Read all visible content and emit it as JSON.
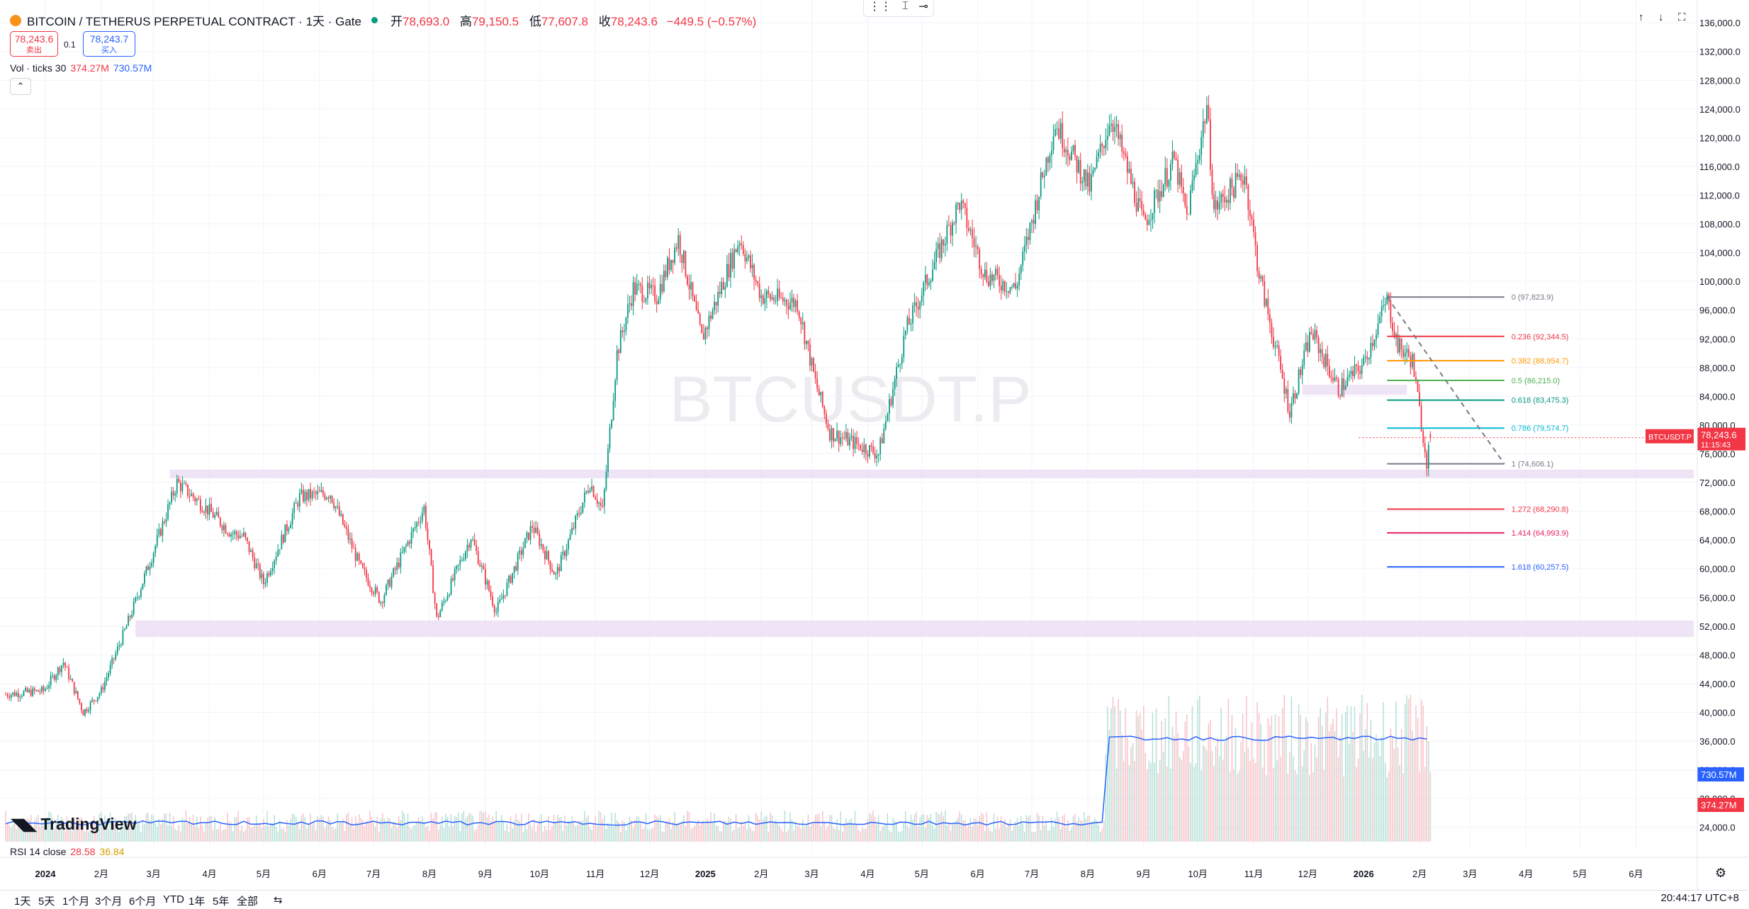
{
  "header": {
    "title": "BITCOIN / TETHERUS PERPETUAL CONTRACT · 1天 · Gate",
    "ohlc": [
      {
        "label": "开",
        "value": "78,693.0"
      },
      {
        "label": "高",
        "value": "79,150.5"
      },
      {
        "label": "低",
        "value": "77,607.8"
      },
      {
        "label": "收",
        "value": "78,243.6"
      }
    ],
    "change": "−449.5 (−0.57%)",
    "sell": {
      "price": "78,243.6",
      "label": "卖出"
    },
    "buy": {
      "price": "78,243.7",
      "label": "买入"
    },
    "spread": "0.1"
  },
  "volume_legend": {
    "label": "Vol · ticks 30",
    "v1": "374.27M",
    "v2": "730.57M"
  },
  "watermark": "BTCUSDT.P",
  "brand": "TradingView",
  "rsi_legend": {
    "label": "RSI 14 close",
    "v1": "28.58",
    "v2": "36.84"
  },
  "price_tag": {
    "symbol": "BTCUSDT.P",
    "price": "78,243.6",
    "countdown": "11:15:43"
  },
  "volume_tags": [
    "730.57M",
    "374.27M"
  ],
  "timeframes": [
    "1天",
    "5天",
    "1个月",
    "3个月",
    "6个月",
    "YTD",
    "1年",
    "5年",
    "全部"
  ],
  "clock": "20:44:17 UTC+8",
  "colors": {
    "up": "#089981",
    "down": "#f23645",
    "zone": "#e8d8f2",
    "blue": "#2962ff"
  },
  "chart_data": {
    "type": "candlestick",
    "yaxis": {
      "min": 22000,
      "max": 137000,
      "ticks": [
        24000,
        28000,
        32000,
        36000,
        40000,
        44000,
        48000,
        52000,
        56000,
        60000,
        64000,
        68000,
        72000,
        76000,
        80000,
        84000,
        88000,
        92000,
        96000,
        100000,
        104000,
        108000,
        112000,
        116000,
        120000,
        124000,
        128000,
        132000,
        136000
      ],
      "tick_labels": [
        "24,000.0",
        "28,000.0",
        "32,000.0",
        "36,000.0",
        "40,000.0",
        "44,000.0",
        "48,000.0",
        "52,000.0",
        "56,000.0",
        "60,000.0",
        "64,000.0",
        "68,000.0",
        "72,000.0",
        "76,000.0",
        "80,000.0",
        "84,000.0",
        "88,000.0",
        "92,000.0",
        "96,000.0",
        "100,000.0",
        "104,000.0",
        "108,000.0",
        "112,000.0",
        "116,000.0",
        "120,000.0",
        "124,000.0",
        "128,000.0",
        "132,000.0",
        "136,000.0"
      ]
    },
    "xaxis": {
      "start": "2023-12-10",
      "end": "2026-07-05",
      "labels": [
        {
          "date": "2024-01-01",
          "label": "2024"
        },
        {
          "date": "2024-02-01",
          "label": "2月"
        },
        {
          "date": "2024-03-01",
          "label": "3月"
        },
        {
          "date": "2024-04-01",
          "label": "4月"
        },
        {
          "date": "2024-05-01",
          "label": "5月"
        },
        {
          "date": "2024-06-01",
          "label": "6月"
        },
        {
          "date": "2024-07-01",
          "label": "7月"
        },
        {
          "date": "2024-08-01",
          "label": "8月"
        },
        {
          "date": "2024-09-01",
          "label": "9月"
        },
        {
          "date": "2024-10-01",
          "label": "10月"
        },
        {
          "date": "2024-11-01",
          "label": "11月"
        },
        {
          "date": "2024-12-01",
          "label": "12月"
        },
        {
          "date": "2025-01-01",
          "label": "2025"
        },
        {
          "date": "2025-02-01",
          "label": "2月"
        },
        {
          "date": "2025-03-01",
          "label": "3月"
        },
        {
          "date": "2025-04-01",
          "label": "4月"
        },
        {
          "date": "2025-05-01",
          "label": "5月"
        },
        {
          "date": "2025-06-01",
          "label": "6月"
        },
        {
          "date": "2025-07-01",
          "label": "7月"
        },
        {
          "date": "2025-08-01",
          "label": "8月"
        },
        {
          "date": "2025-09-01",
          "label": "9月"
        },
        {
          "date": "2025-10-01",
          "label": "10月"
        },
        {
          "date": "2025-11-01",
          "label": "11月"
        },
        {
          "date": "2025-12-01",
          "label": "12月"
        },
        {
          "date": "2026-01-01",
          "label": "2026"
        },
        {
          "date": "2026-02-01",
          "label": "2月"
        },
        {
          "date": "2026-03-01",
          "label": "3月"
        },
        {
          "date": "2026-04-01",
          "label": "4月"
        },
        {
          "date": "2026-05-01",
          "label": "5月"
        },
        {
          "date": "2026-06-01",
          "label": "6月"
        }
      ]
    },
    "price_path": [
      [
        "2023-12-10",
        42500
      ],
      [
        "2023-12-31",
        43000
      ],
      [
        "2024-01-11",
        47000
      ],
      [
        "2024-01-22",
        40000
      ],
      [
        "2024-02-01",
        43000
      ],
      [
        "2024-02-15",
        52000
      ],
      [
        "2024-02-28",
        61000
      ],
      [
        "2024-03-14",
        72000
      ],
      [
        "2024-04-01",
        68000
      ],
      [
        "2024-04-13",
        65000
      ],
      [
        "2024-04-20",
        64500
      ],
      [
        "2024-05-01",
        58000
      ],
      [
        "2024-05-21",
        70000
      ],
      [
        "2024-06-07",
        70500
      ],
      [
        "2024-06-24",
        60000
      ],
      [
        "2024-07-05",
        55500
      ],
      [
        "2024-07-29",
        68500
      ],
      [
        "2024-08-05",
        53000
      ],
      [
        "2024-08-24",
        64500
      ],
      [
        "2024-09-07",
        54000
      ],
      [
        "2024-09-27",
        66000
      ],
      [
        "2024-10-10",
        59000
      ],
      [
        "2024-10-29",
        72000
      ],
      [
        "2024-11-05",
        68000
      ],
      [
        "2024-11-13",
        90000
      ],
      [
        "2024-11-22",
        99000
      ],
      [
        "2024-12-05",
        98000
      ],
      [
        "2024-12-17",
        106000
      ],
      [
        "2024-12-30",
        92000
      ],
      [
        "2025-01-20",
        106000
      ],
      [
        "2025-02-01",
        98000
      ],
      [
        "2025-02-21",
        97000
      ],
      [
        "2025-03-03",
        86000
      ],
      [
        "2025-03-11",
        79000
      ],
      [
        "2025-04-07",
        76000
      ],
      [
        "2025-04-22",
        93000
      ],
      [
        "2025-05-22",
        111000
      ],
      [
        "2025-06-05",
        101000
      ],
      [
        "2025-06-22",
        99000
      ],
      [
        "2025-07-14",
        122000
      ],
      [
        "2025-08-02",
        113000
      ],
      [
        "2025-08-14",
        123000
      ],
      [
        "2025-09-01",
        108000
      ],
      [
        "2025-09-18",
        117000
      ],
      [
        "2025-09-25",
        109000
      ],
      [
        "2025-10-06",
        124500
      ],
      [
        "2025-10-10",
        110000
      ],
      [
        "2025-10-27",
        115000
      ],
      [
        "2025-11-04",
        101000
      ],
      [
        "2025-11-21",
        82000
      ],
      [
        "2025-12-03",
        93000
      ],
      [
        "2025-12-18",
        85000
      ],
      [
        "2026-01-01",
        88500
      ],
      [
        "2026-01-14",
        97500
      ],
      [
        "2026-01-20",
        91000
      ],
      [
        "2026-01-28",
        89000
      ],
      [
        "2026-02-05",
        75000
      ],
      [
        "2026-02-07",
        78243.6
      ]
    ],
    "horizontal_zones": [
      {
        "from": 72600,
        "to": 73800,
        "start": "2024-03-10"
      },
      {
        "from": 50500,
        "to": 52800,
        "start": "2024-02-20"
      },
      {
        "from": 84200,
        "to": 85600,
        "start": "2025-11-28",
        "end": "2026-01-25"
      }
    ],
    "fibonacci": {
      "start": "2026-01-14",
      "end": "2026-03-20",
      "levels": [
        {
          "ratio": "0",
          "price": "97,823.9",
          "value": 97823.9,
          "color": "#787b86"
        },
        {
          "ratio": "0.236",
          "price": "92,344.5",
          "value": 92344.5,
          "color": "#f23645"
        },
        {
          "ratio": "0.382",
          "price": "88,954.7",
          "value": 88954.7,
          "color": "#ff9800"
        },
        {
          "ratio": "0.5",
          "price": "86,215.0",
          "value": 86215.0,
          "color": "#4caf50"
        },
        {
          "ratio": "0.618",
          "price": "83,475.3",
          "value": 83475.3,
          "color": "#089981"
        },
        {
          "ratio": "0.786",
          "price": "79,574.7",
          "value": 79574.7,
          "color": "#00bcd4"
        },
        {
          "ratio": "1",
          "price": "74,606.1",
          "value": 74606.1,
          "color": "#787b86"
        },
        {
          "ratio": "1.272",
          "price": "68,290.8",
          "value": 68290.8,
          "color": "#f23645"
        },
        {
          "ratio": "1.414",
          "price": "64,993.9",
          "value": 64993.9,
          "color": "#e91e63"
        },
        {
          "ratio": "1.618",
          "price": "60,257.5",
          "value": 60257.5,
          "color": "#2962ff"
        }
      ]
    },
    "trend_line": {
      "from": [
        "2026-01-14",
        97823.9
      ],
      "to": [
        "2026-03-20",
        74606.1
      ]
    }
  }
}
